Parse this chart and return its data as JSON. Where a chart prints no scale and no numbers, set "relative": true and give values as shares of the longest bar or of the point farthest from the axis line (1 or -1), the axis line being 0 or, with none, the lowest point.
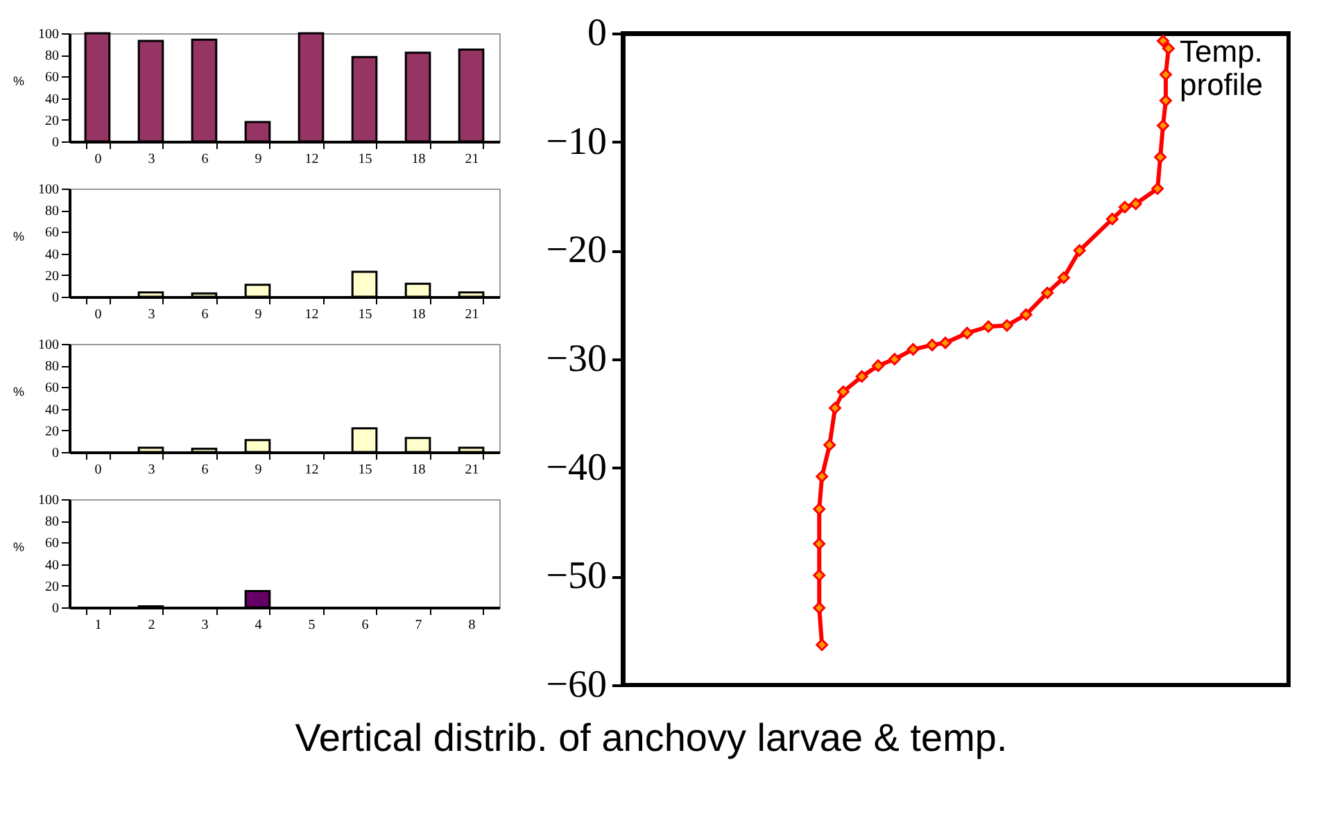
{
  "chart_data": [
    {
      "type": "line",
      "title": "Vertical distrib. of anchovy larvae & temp.",
      "orientation": "horizontal",
      "relative": true,
      "ylim": [
        -60,
        0
      ],
      "yticks": [
        0,
        -10,
        -20,
        -30,
        -40,
        -50,
        -60
      ],
      "grid": false,
      "legend": false,
      "marker": "diamond",
      "line_style": "solid",
      "series": [
        {
          "name": "Temp. profile",
          "color": "#ff0000",
          "x": [
            -0.7,
            -1.4,
            -3.8,
            -6.2,
            -8.5,
            -11.4,
            -14.3,
            -15.7,
            -16.0,
            -17.1,
            -20.0,
            -22.5,
            -23.9,
            -25.9,
            -26.9,
            -27.0,
            -27.6,
            -28.5,
            -28.7,
            -29.1,
            -30.0,
            -30.6,
            -31.6,
            -33.0,
            -34.5,
            -37.9,
            -40.8,
            -43.8,
            -47.0,
            -49.9,
            -52.9,
            -56.3
          ],
          "values": [
            0.99,
            1,
            0.995,
            0.995,
            0.99,
            0.985,
            0.98,
            0.94,
            0.92,
            0.897,
            0.837,
            0.808,
            0.778,
            0.739,
            0.704,
            0.67,
            0.631,
            0.591,
            0.567,
            0.532,
            0.498,
            0.468,
            0.438,
            0.404,
            0.389,
            0.379,
            0.365,
            0.36,
            0.36,
            0.36,
            0.36,
            0.365
          ]
        }
      ]
    },
    {
      "type": "bar",
      "ylabel": "%",
      "categories": [
        "0",
        "3",
        "6",
        "9",
        "12",
        "15",
        "18",
        "21"
      ],
      "values": [
        100,
        93,
        94,
        18,
        100,
        78,
        82,
        85
      ],
      "color": "#963464",
      "ylim": [
        0,
        100
      ],
      "yticks": [
        0,
        20,
        40,
        60,
        80,
        100
      ],
      "grid": false
    },
    {
      "type": "bar",
      "ylabel": "%",
      "categories": [
        "0",
        "3",
        "6",
        "9",
        "12",
        "15",
        "18",
        "21"
      ],
      "values": [
        null,
        4,
        3,
        11,
        null,
        23,
        12,
        4
      ],
      "color": "#ffffcc",
      "ylim": [
        0,
        100
      ],
      "yticks": [
        0,
        20,
        40,
        60,
        80,
        100
      ],
      "grid": false
    },
    {
      "type": "bar",
      "ylabel": "%",
      "categories": [
        "0",
        "3",
        "6",
        "9",
        "12",
        "15",
        "18",
        "21"
      ],
      "values": [
        null,
        4,
        3,
        11,
        null,
        22,
        13,
        4
      ],
      "color": "#ffffcc",
      "ylim": [
        0,
        100
      ],
      "yticks": [
        0,
        20,
        40,
        60,
        80,
        100
      ],
      "grid": false
    },
    {
      "type": "bar",
      "ylabel": "%",
      "categories": [
        "1",
        "2",
        "3",
        "4",
        "5",
        "6",
        "7",
        "8"
      ],
      "values": [
        null,
        1,
        null,
        15,
        null,
        null,
        null,
        null
      ],
      "color": "#660066",
      "ylim": [
        0,
        100
      ],
      "yticks": [
        0,
        20,
        40,
        60,
        80,
        100
      ],
      "grid": false
    }
  ]
}
